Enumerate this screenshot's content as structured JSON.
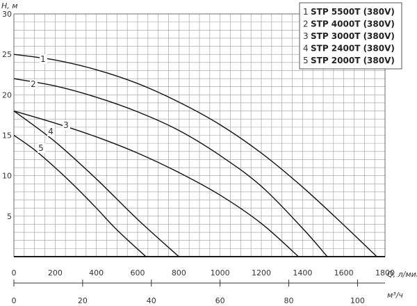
{
  "chart_data": {
    "type": "line",
    "title": "",
    "ylabel": "H, м",
    "xlabel": "Q, л/мин",
    "x2label": "м³/ч",
    "xlim": [
      0,
      1800
    ],
    "ylim": [
      0,
      30
    ],
    "x2lim": [
      0,
      108
    ],
    "x_ticks": [
      "0",
      "200",
      "400",
      "600",
      "800",
      "1000",
      "1200",
      "1400",
      "1600",
      "1800"
    ],
    "y_ticks": [
      "5",
      "10",
      "15",
      "20",
      "25",
      "30"
    ],
    "x2_ticks": [
      "0",
      "20",
      "40",
      "60",
      "80",
      "100"
    ],
    "grid": true,
    "legend_position": "top-right",
    "series": [
      {
        "name": "STP 5500T (380V)",
        "label": "1",
        "x": [
          0,
          200,
          400,
          600,
          800,
          1000,
          1200,
          1400,
          1600,
          1760
        ],
        "y": [
          25,
          24.3,
          23.1,
          21.4,
          19.1,
          16.3,
          12.8,
          8.6,
          3.9,
          0
        ]
      },
      {
        "name": "STP 4000T (380V)",
        "label": "2",
        "x": [
          0,
          200,
          400,
          600,
          800,
          1000,
          1200,
          1400,
          1520
        ],
        "y": [
          22,
          21.1,
          19.7,
          17.9,
          15.6,
          12.5,
          8.7,
          3.5,
          0
        ]
      },
      {
        "name": "STP 3000T (380V)",
        "label": "3",
        "x": [
          0,
          200,
          400,
          600,
          800,
          1000,
          1200,
          1380
        ],
        "y": [
          18,
          16.5,
          14.8,
          12.8,
          10.4,
          7.6,
          4.1,
          0
        ]
      },
      {
        "name": "STP 2400T (380V)",
        "label": "4",
        "x": [
          0,
          200,
          400,
          600,
          800
        ],
        "y": [
          18,
          14.2,
          9.6,
          4.6,
          0
        ]
      },
      {
        "name": "STP 2000T (380V)",
        "label": "5",
        "x": [
          0,
          100,
          200,
          300,
          400,
          500,
          640
        ],
        "y": [
          15,
          13.2,
          11,
          8.6,
          6,
          3.3,
          0
        ]
      }
    ]
  }
}
